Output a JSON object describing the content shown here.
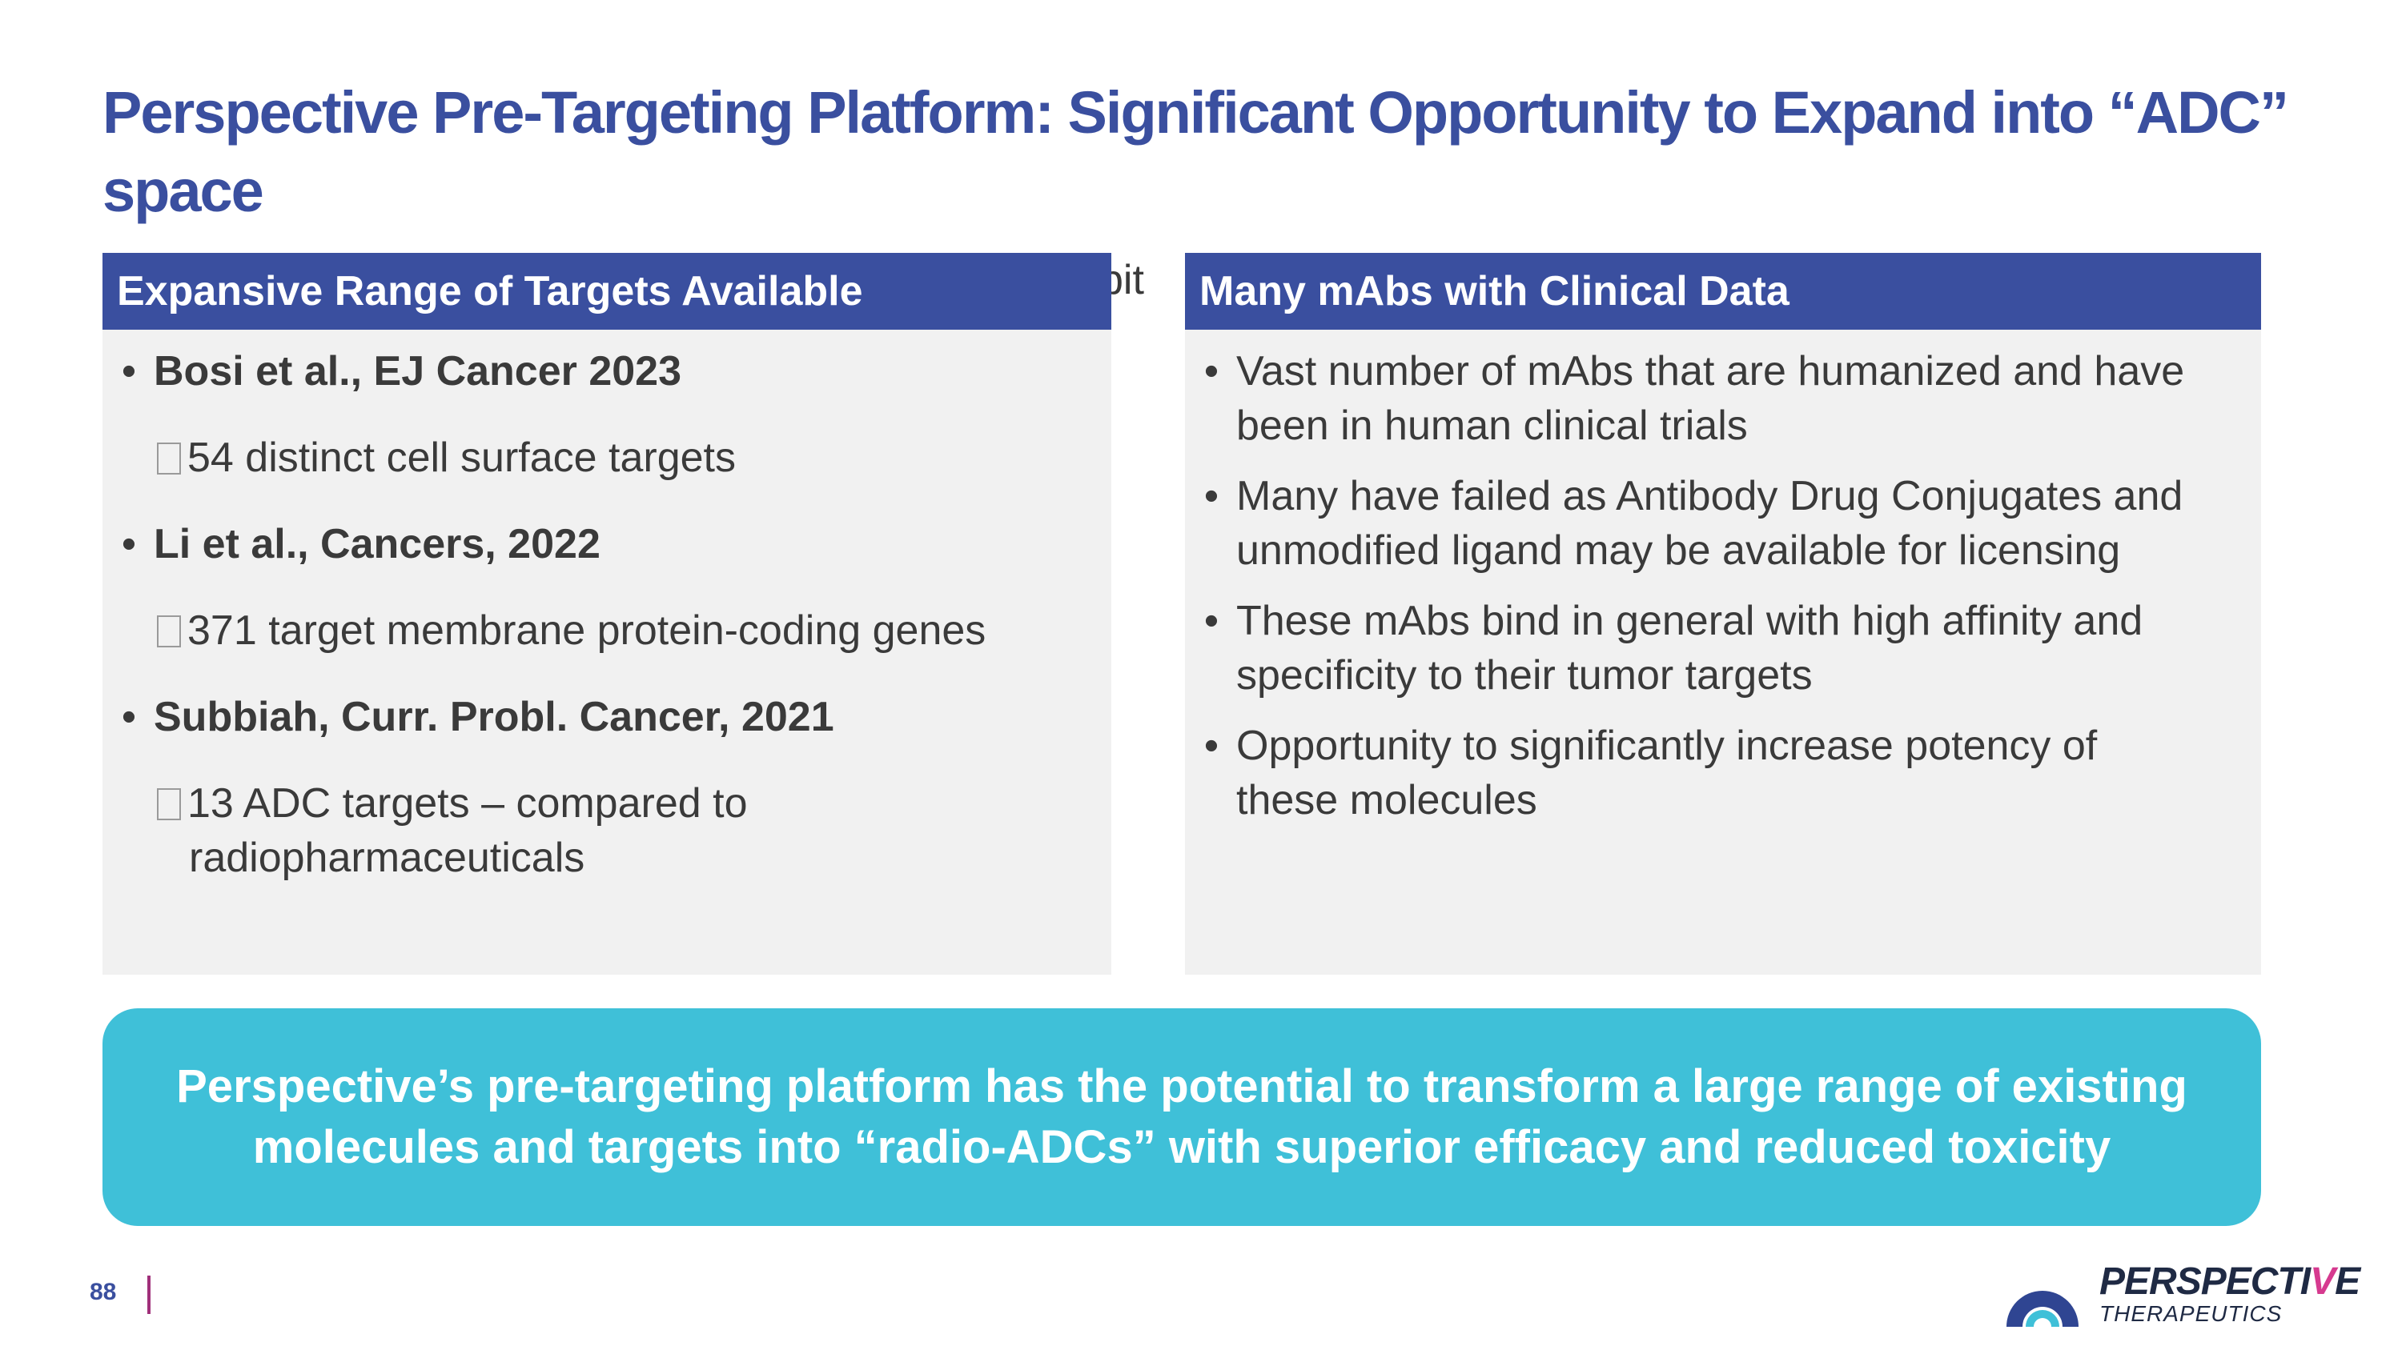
{
  "slide": {
    "title": "Perspective Pre-Targeting Platform: Significant Opportunity to Expand into “ADC” space",
    "stray_text": "bit"
  },
  "left_panel": {
    "header": "Expansive Range of Targets Available",
    "entries": [
      {
        "citation": "Bosi et al., EJ Cancer 2023",
        "detail": "54 distinct cell surface targets"
      },
      {
        "citation": "Li et al., Cancers, 2022",
        "detail": "371 target membrane protein-coding genes"
      },
      {
        "citation": "Subbiah, Curr. Probl. Cancer, 2021",
        "detail_line1": "13 ADC targets – compared to",
        "detail_line2": "radiopharmaceuticals"
      }
    ]
  },
  "right_panel": {
    "header": "Many mAbs with Clinical Data",
    "bullets": [
      {
        "line1": "Vast number of mAbs that are humanized and have",
        "line2": "been in human clinical trials"
      },
      {
        "line1": "Many have failed as Antibody Drug Conjugates and",
        "line2": "unmodified ligand may be available for licensing"
      },
      {
        "line1": "These mAbs bind in general with high affinity and",
        "line2": "specificity to their tumor targets"
      },
      {
        "line1": "Opportunity to significantly increase potency of",
        "line2": "these molecules"
      }
    ]
  },
  "callout": {
    "line1": "Perspective’s pre-targeting platform has the potential to transform a large range of existing",
    "line2": "molecules and targets into “radio-ADCs” with superior efficacy and reduced toxicity"
  },
  "footer": {
    "page_number": "88",
    "logo_word_main": "PERSPECTI",
    "logo_word_accent": "V",
    "logo_word_end": "E",
    "logo_sub": "THERAPEUTICS"
  },
  "colors": {
    "header_blue": "#3a4f9f",
    "callout_teal": "#3fc0d8",
    "panel_gray": "#f1f1f1",
    "accent_magenta": "#d63a8f"
  },
  "icons": [
    "bullet-icon",
    "sub-bullet-box-icon",
    "perspective-logo-icon"
  ]
}
